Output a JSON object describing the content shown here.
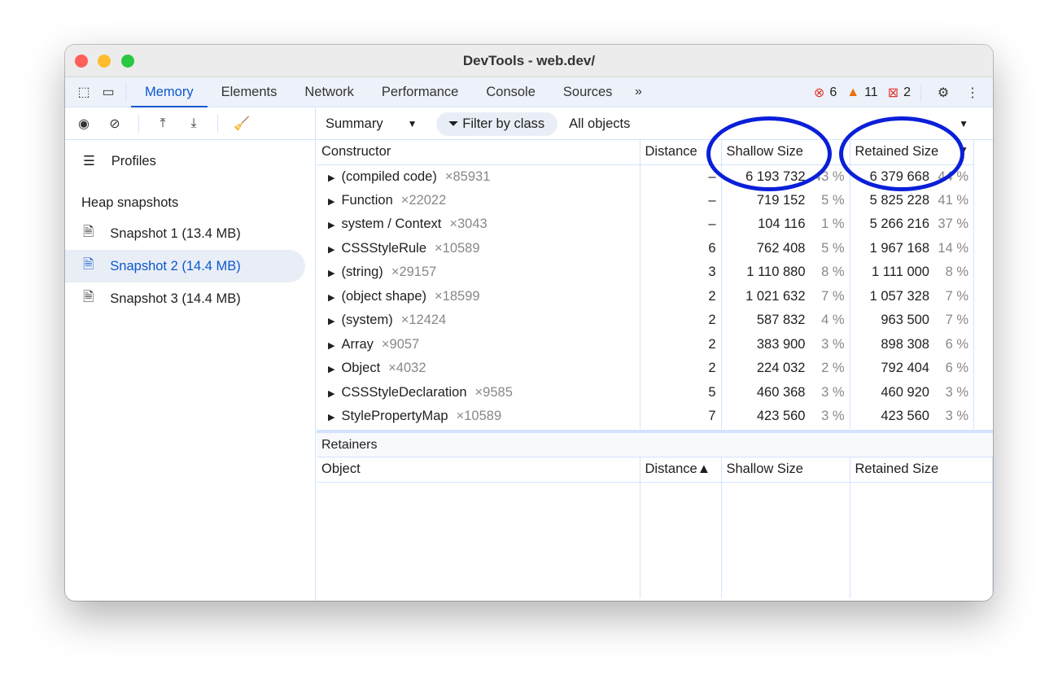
{
  "window": {
    "title": "DevTools - web.dev/"
  },
  "tabs": [
    {
      "label": "Memory",
      "active": true
    },
    {
      "label": "Elements"
    },
    {
      "label": "Network"
    },
    {
      "label": "Performance"
    },
    {
      "label": "Console"
    },
    {
      "label": "Sources"
    }
  ],
  "status": {
    "errors": "6",
    "warnings": "11",
    "issues": "2"
  },
  "colors": {
    "accent": "#0b57d0",
    "annotation": "#0a1fd8",
    "error": "#dc362e",
    "warning": "#e8710a"
  },
  "sidebar": {
    "profiles": "Profiles",
    "section": "Heap snapshots",
    "snapshots": [
      {
        "label": "Snapshot 1 (13.4 MB)"
      },
      {
        "label": "Snapshot 2 (14.4 MB)",
        "selected": true
      },
      {
        "label": "Snapshot 3 (14.4 MB)"
      }
    ]
  },
  "toolbar": {
    "view": "Summary",
    "filter": "Filter by class",
    "objects": "All objects"
  },
  "table": {
    "headers": [
      "Constructor",
      "Distance",
      "Shallow Size",
      "Retained Size"
    ],
    "rows": [
      [
        "(compiled code)",
        "×85931",
        "–",
        "6 193 732",
        "43 %",
        "6 379 668",
        "44 %"
      ],
      [
        "Function",
        "×22022",
        "–",
        "719 152",
        "5 %",
        "5 825 228",
        "41 %"
      ],
      [
        "system / Context",
        "×3043",
        "–",
        "104 116",
        "1 %",
        "5 266 216",
        "37 %"
      ],
      [
        "CSSStyleRule",
        "×10589",
        "6",
        "762 408",
        "5 %",
        "1 967 168",
        "14 %"
      ],
      [
        "(string)",
        "×29157",
        "3",
        "1 110 880",
        "8 %",
        "1 111 000",
        "8 %"
      ],
      [
        "(object shape)",
        "×18599",
        "2",
        "1 021 632",
        "7 %",
        "1 057 328",
        "7 %"
      ],
      [
        "(system)",
        "×12424",
        "2",
        "587 832",
        "4 %",
        "963 500",
        "7 %"
      ],
      [
        "Array",
        "×9057",
        "2",
        "383 900",
        "3 %",
        "898 308",
        "6 %"
      ],
      [
        "Object",
        "×4032",
        "2",
        "224 032",
        "2 %",
        "792 404",
        "6 %"
      ],
      [
        "CSSStyleDeclaration",
        "×9585",
        "5",
        "460 368",
        "3 %",
        "460 920",
        "3 %"
      ],
      [
        "StylePropertyMap",
        "×10589",
        "7",
        "423 560",
        "3 %",
        "423 560",
        "3 %"
      ]
    ]
  },
  "retainers": {
    "title": "Retainers",
    "headers": [
      "Object",
      "Distance▲",
      "Shallow Size",
      "Retained Size"
    ]
  }
}
